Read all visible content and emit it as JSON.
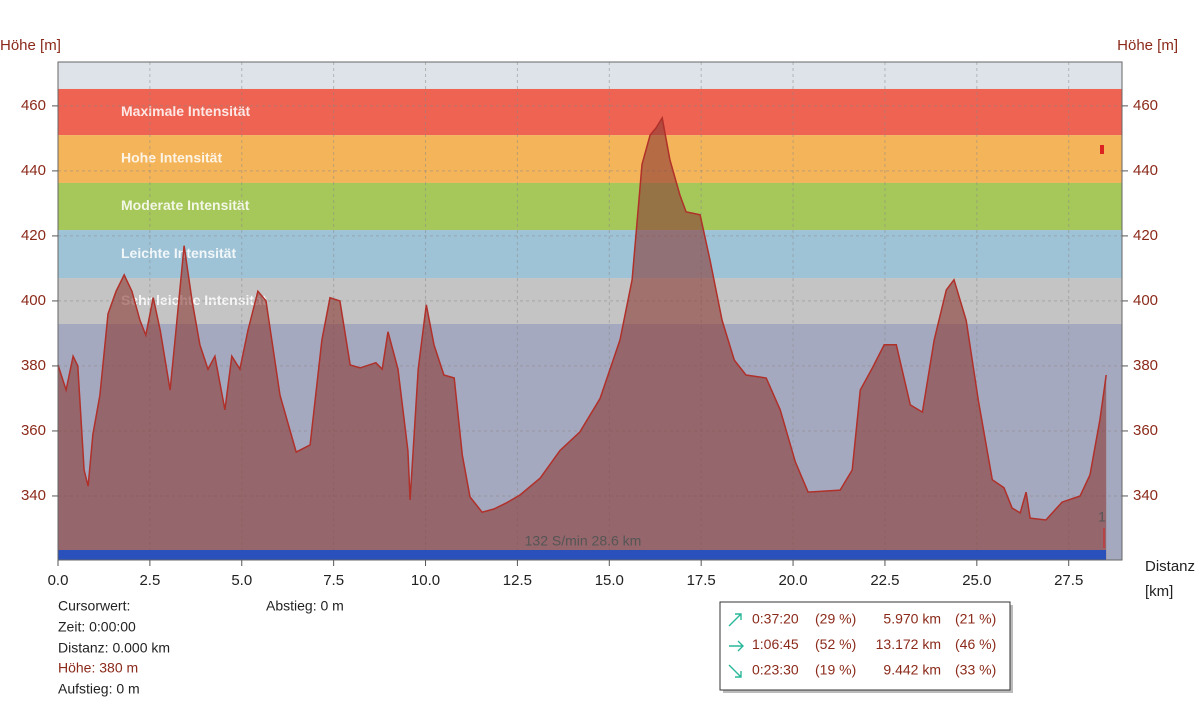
{
  "chart_data": {
    "type": "area",
    "y_label": "Höhe [m]",
    "y2_label": "Höhe [m]",
    "x_label_lines": [
      "Distanz",
      "[km]"
    ],
    "x": [
      0,
      0.22,
      0.41,
      0.54,
      0.71,
      0.82,
      0.95,
      1.14,
      1.36,
      1.58,
      1.8,
      2.01,
      2.23,
      2.39,
      2.59,
      2.78,
      3.05,
      3.21,
      3.43,
      3.65,
      3.86,
      4.08,
      4.27,
      4.54,
      4.73,
      4.95,
      5.17,
      5.44,
      5.66,
      6.04,
      6.48,
      6.86,
      7.18,
      7.4,
      7.67,
      7.95,
      8.22,
      8.65,
      8.82,
      8.98,
      9.25,
      9.52,
      9.58,
      9.8,
      10.02,
      10.23,
      10.5,
      10.78,
      11.0,
      11.21,
      11.54,
      11.86,
      12.19,
      12.57,
      13.12,
      13.66,
      14.2,
      14.75,
      15.29,
      15.62,
      15.89,
      16.11,
      16.27,
      16.44,
      16.65,
      16.92,
      17.09,
      17.47,
      17.74,
      18.07,
      18.4,
      18.72,
      19.27,
      19.65,
      20.06,
      20.41,
      21.28,
      21.61,
      21.83,
      22.16,
      22.48,
      22.81,
      23.19,
      23.52,
      23.84,
      24.17,
      24.38,
      24.71,
      25.04,
      25.42,
      25.74,
      25.96,
      26.18,
      26.34,
      26.45,
      26.88,
      27.32,
      27.81,
      28.08,
      28.35,
      28.52
    ],
    "series": [
      {
        "name": "Höhe",
        "color": "#b0302a",
        "values": [
          380.3,
          372.6,
          383,
          380,
          348,
          343,
          359,
          371,
          396,
          403,
          408,
          403,
          394,
          389.5,
          401,
          391,
          372.6,
          391,
          417,
          400,
          386.5,
          379,
          383,
          366.5,
          383,
          379,
          391,
          403,
          400,
          371,
          353.5,
          355.7,
          388,
          401,
          400,
          380.3,
          379.4,
          381,
          379,
          390.5,
          379,
          354,
          338.8,
          379,
          398.8,
          386.5,
          377.2,
          376.3,
          352.6,
          339.7,
          335,
          336,
          337.8,
          340.3,
          345.5,
          354,
          359.7,
          370,
          388,
          406.5,
          442,
          451,
          453.2,
          456.3,
          443.4,
          432.6,
          427.4,
          426.5,
          412.6,
          394,
          381.8,
          377.2,
          376.3,
          366.5,
          350.5,
          341.2,
          341.8,
          348,
          372.6,
          379.4,
          386.5,
          386.5,
          368,
          365.8,
          388,
          403.4,
          406.5,
          394,
          369.5,
          345,
          342.5,
          336.3,
          334.8,
          341.2,
          333.2,
          332.6,
          338.1,
          340,
          346.5,
          363.4,
          377.2
        ]
      }
    ],
    "bands": [
      {
        "name": "Maximale Intensität",
        "color": "#ee6352",
        "from": 451,
        "to": 465.2
      },
      {
        "name": "Hohe Intensität",
        "color": "#f4b55a",
        "from": 436.3,
        "to": 451
      },
      {
        "name": "Moderate Intensität",
        "color": "#a6c75a",
        "from": 421.8,
        "to": 436.3
      },
      {
        "name": "Leichte Intensität",
        "color": "#9fc3d6",
        "from": 407,
        "to": 421.8
      },
      {
        "name": "Sehr leichte Intensität",
        "color": "#c4c4c4",
        "from": 392.9,
        "to": 407
      }
    ],
    "annotation": "132 S/min 28.6 km",
    "marker_label": "1",
    "xlim": [
      0,
      28.95
    ],
    "ylim": [
      320.3,
      473.5
    ],
    "xticks": [
      {
        "value": 0,
        "label": "0.0"
      },
      2.5,
      {
        "value": 5,
        "label": "5.0"
      },
      7.5,
      {
        "value": 10,
        "label": "10.0"
      },
      12.5,
      {
        "value": 15,
        "label": "15.0"
      },
      17.5,
      {
        "value": 20,
        "label": "20.0"
      },
      22.5,
      {
        "value": 25,
        "label": "25.0"
      },
      27.5
    ],
    "yticks": [
      340,
      360,
      380,
      400,
      420,
      440,
      460
    ],
    "grid": true
  },
  "cursor": {
    "title": "Cursorwert:",
    "time": "Zeit: 0:00:00",
    "distance": "Distanz: 0.000 km",
    "height": "Höhe:  380 m",
    "ascent": "Aufstieg: 0 m",
    "descent": "Abstieg: 0 m"
  },
  "stats": {
    "rows": [
      [
        "0:37:20",
        "(29 %)",
        "5.970 km",
        "(21 %)"
      ],
      [
        "1:06:45",
        "(52 %)",
        "13.172 km",
        "(46 %)"
      ],
      [
        "0:23:30",
        "(19 %)",
        "9.442 km",
        "(33 %)"
      ]
    ]
  }
}
